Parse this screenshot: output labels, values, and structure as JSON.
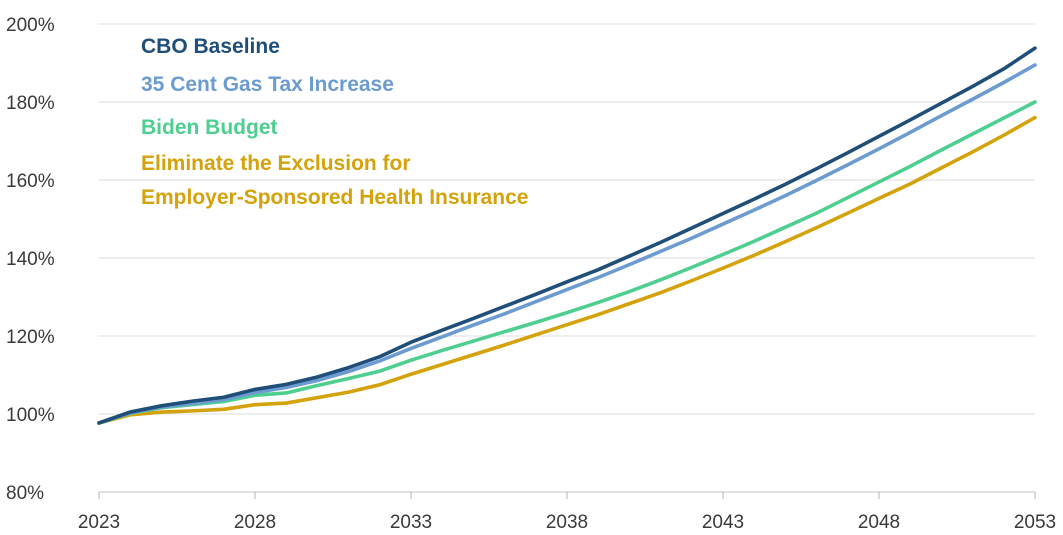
{
  "chart_data": {
    "type": "line",
    "x": [
      2023,
      2024,
      2025,
      2026,
      2027,
      2028,
      2029,
      2030,
      2031,
      2032,
      2033,
      2034,
      2035,
      2036,
      2037,
      2038,
      2039,
      2040,
      2041,
      2042,
      2043,
      2044,
      2045,
      2046,
      2047,
      2048,
      2049,
      2050,
      2051,
      2052,
      2053
    ],
    "xticks": [
      2023,
      2028,
      2033,
      2038,
      2043,
      2048,
      2053
    ],
    "xlim": [
      2023,
      2053
    ],
    "ylim": [
      80,
      200
    ],
    "yticks": [
      80,
      100,
      120,
      140,
      160,
      180,
      200
    ],
    "ytick_suffix": "%",
    "grid": "horizontal",
    "legend_position": "top-left",
    "series": [
      {
        "name": "CBO Baseline",
        "color": "#1f4e79",
        "values": [
          97.7,
          100.5,
          102.1,
          103.3,
          104.3,
          106.3,
          107.6,
          109.5,
          111.9,
          114.7,
          118.4,
          121.5,
          124.5,
          127.6,
          130.7,
          133.9,
          137.0,
          140.5,
          144.0,
          147.7,
          151.4,
          155.1,
          158.9,
          162.9,
          167.0,
          171.2,
          175.4,
          179.7,
          184.0,
          188.5,
          193.8
        ]
      },
      {
        "name": "35 Cent Gas Tax Increase",
        "color": "#6b9bd1",
        "values": [
          97.7,
          100.3,
          101.8,
          102.7,
          103.7,
          105.5,
          106.8,
          108.6,
          110.9,
          113.6,
          116.8,
          119.8,
          122.8,
          125.7,
          128.8,
          131.9,
          135.0,
          138.3,
          141.7,
          145.1,
          148.7,
          152.3,
          156.0,
          159.9,
          163.9,
          168.0,
          172.2,
          176.5,
          180.7,
          185.0,
          189.5
        ]
      },
      {
        "name": "Biden Budget",
        "color": "#4fcf8f",
        "values": [
          97.7,
          100.2,
          101.6,
          102.4,
          103.2,
          104.8,
          105.4,
          107.3,
          109.1,
          111.0,
          113.8,
          116.3,
          118.7,
          121.1,
          123.5,
          126.0,
          128.6,
          131.4,
          134.4,
          137.6,
          140.9,
          144.3,
          147.9,
          151.5,
          155.5,
          159.5,
          163.5,
          167.7,
          171.8,
          175.9,
          180.0
        ]
      },
      {
        "name": "Eliminate the Exclusion for Employer-Sponsored Health Insurance",
        "label_lines": [
          "Eliminate the Exclusion for",
          "Employer-Sponsored Health Insurance"
        ],
        "color": "#d4a20a",
        "values": [
          97.7,
          99.8,
          100.5,
          100.8,
          101.2,
          102.4,
          102.8,
          104.2,
          105.6,
          107.5,
          110.2,
          112.7,
          115.2,
          117.7,
          120.3,
          122.9,
          125.5,
          128.3,
          131.1,
          134.2,
          137.4,
          140.7,
          144.2,
          147.8,
          151.5,
          155.3,
          159.0,
          163.1,
          167.2,
          171.5,
          176.0
        ]
      }
    ]
  }
}
